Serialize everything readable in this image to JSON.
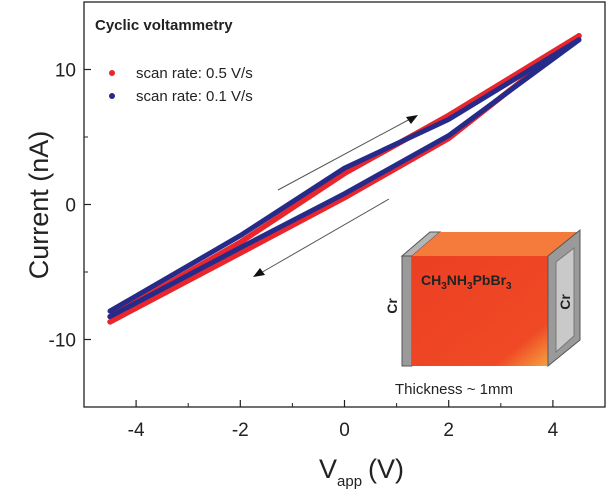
{
  "chart_data": {
    "type": "line",
    "title": "Cyclic voltammetry",
    "xlabel": "V",
    "xlabel_sub": "app",
    "xlabel_unit": "(V)",
    "ylabel": "Current (nA)",
    "xlim": [
      -5.0,
      5.0
    ],
    "ylim": [
      -15,
      15
    ],
    "xticks": [
      "-4",
      "-2",
      "0",
      "2",
      "4"
    ],
    "yticks": [
      "10",
      "0",
      "-10"
    ],
    "series": [
      {
        "name": "scan rate: 0.5 V/s",
        "color": "#e8262b",
        "forward": [
          [
            -4.5,
            -8.7
          ],
          [
            -2,
            -3.6
          ],
          [
            0,
            0.5
          ],
          [
            2,
            4.9
          ],
          [
            4.5,
            12.5
          ]
        ],
        "reverse": [
          [
            4.5,
            12.5
          ],
          [
            2,
            6.6
          ],
          [
            0,
            2.3
          ],
          [
            -2,
            -2.8
          ],
          [
            -4.5,
            -8.3
          ]
        ]
      },
      {
        "name": "scan rate: 0.1 V/s",
        "color": "#262b8a",
        "forward": [
          [
            -4.5,
            -8.3
          ],
          [
            -2,
            -3.2
          ],
          [
            0,
            0.8
          ],
          [
            2,
            5.1
          ],
          [
            4.5,
            12.2
          ]
        ],
        "reverse": [
          [
            4.5,
            12.2
          ],
          [
            2,
            6.3
          ],
          [
            0,
            2.7
          ],
          [
            -2,
            -2.3
          ],
          [
            -4.5,
            -7.9
          ]
        ]
      }
    ],
    "legend_position": "top-left",
    "grid": false
  },
  "inset": {
    "formula_parts": [
      "CH",
      "3",
      "NH",
      "3",
      "PbBr",
      "3"
    ],
    "electrode_left": "Cr",
    "electrode_right": "Cr",
    "thickness_label": "Thickness ~ 1mm",
    "colors": {
      "front": "#ee4526",
      "top": "#f47b3c",
      "side": "#c4361c",
      "electrode": "#9a9a9a"
    }
  }
}
